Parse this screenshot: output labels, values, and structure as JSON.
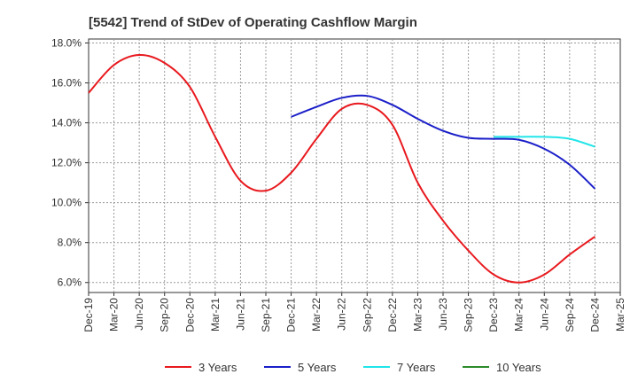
{
  "chart_data": {
    "type": "line",
    "title": "[5542]  Trend of StDev of Operating Cashflow Margin",
    "xlabel": "",
    "ylabel": "",
    "x_tick_labels": [
      "Dec-19",
      "Mar-20",
      "Jun-20",
      "Sep-20",
      "Dec-20",
      "Mar-21",
      "Jun-21",
      "Sep-21",
      "Dec-21",
      "Mar-22",
      "Jun-22",
      "Sep-22",
      "Dec-22",
      "Mar-23",
      "Jun-23",
      "Sep-23",
      "Dec-23",
      "Mar-24",
      "Jun-24",
      "Sep-24",
      "Dec-24",
      "Mar-25"
    ],
    "y_tick_labels": [
      "6.0%",
      "8.0%",
      "10.0%",
      "12.0%",
      "14.0%",
      "16.0%",
      "18.0%"
    ],
    "y_ticks": [
      6,
      8,
      10,
      12,
      14,
      16,
      18
    ],
    "ylim": [
      5.5,
      18.2
    ],
    "grid": true,
    "legend_position": "bottom",
    "series": [
      {
        "name": "3 Years",
        "color": "#e8191e",
        "x": [
          "Dec-19",
          "Mar-20",
          "Jun-20",
          "Sep-20",
          "Dec-20",
          "Mar-21",
          "Jun-21",
          "Sep-21",
          "Dec-21",
          "Mar-22",
          "Jun-22",
          "Sep-22",
          "Dec-22",
          "Mar-23",
          "Jun-23",
          "Sep-23",
          "Dec-23",
          "Mar-24",
          "Jun-24",
          "Sep-24",
          "Dec-24"
        ],
        "values": [
          15.5,
          16.9,
          17.4,
          17.0,
          15.8,
          13.3,
          11.1,
          10.6,
          11.5,
          13.2,
          14.7,
          14.9,
          13.9,
          11.0,
          9.1,
          7.6,
          6.4,
          6.0,
          6.4,
          7.4,
          8.3
        ]
      },
      {
        "name": "5 Years",
        "color": "#1b1fc8",
        "x": [
          "Dec-21",
          "Mar-22",
          "Jun-22",
          "Sep-22",
          "Dec-22",
          "Mar-23",
          "Jun-23",
          "Sep-23",
          "Dec-23",
          "Mar-24",
          "Jun-24",
          "Sep-24",
          "Dec-24"
        ],
        "values": [
          14.3,
          14.8,
          15.25,
          15.35,
          14.9,
          14.2,
          13.6,
          13.25,
          13.2,
          13.15,
          12.7,
          11.9,
          10.7
        ]
      },
      {
        "name": "7 Years",
        "color": "#20e5e8",
        "x": [
          "Dec-23",
          "Mar-24",
          "Jun-24",
          "Sep-24",
          "Dec-24"
        ],
        "values": [
          13.3,
          13.3,
          13.3,
          13.2,
          12.8
        ]
      },
      {
        "name": "10 Years",
        "color": "#2a8c2a",
        "x": [],
        "values": []
      }
    ]
  }
}
